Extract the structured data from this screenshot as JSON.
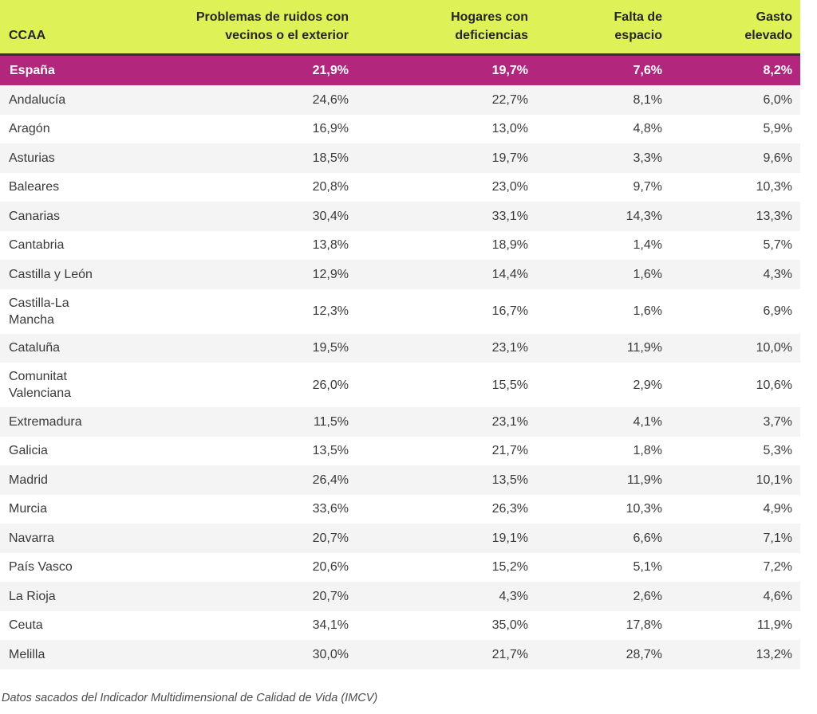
{
  "chart_data": {
    "type": "table",
    "title": "",
    "unit": "%",
    "columns": [
      "CCAA",
      "Problemas de ruidos con vecinos o el exterior",
      "Hogares con deficiencias",
      "Falta de espacio",
      "Gasto elevado"
    ],
    "rows": [
      {
        "ccaa": "España",
        "highlight": true,
        "values": [
          21.9,
          19.7,
          7.6,
          8.2
        ]
      },
      {
        "ccaa": "Andalucía",
        "values": [
          24.6,
          22.7,
          8.1,
          6.0
        ]
      },
      {
        "ccaa": "Aragón",
        "values": [
          16.9,
          13.0,
          4.8,
          5.9
        ]
      },
      {
        "ccaa": "Asturias",
        "values": [
          18.5,
          19.7,
          3.3,
          9.6
        ]
      },
      {
        "ccaa": "Baleares",
        "values": [
          20.8,
          23.0,
          9.7,
          10.3
        ]
      },
      {
        "ccaa": "Canarias",
        "values": [
          30.4,
          33.1,
          14.3,
          13.3
        ]
      },
      {
        "ccaa": "Cantabria",
        "values": [
          13.8,
          18.9,
          1.4,
          5.7
        ]
      },
      {
        "ccaa": "Castilla y León",
        "values": [
          12.9,
          14.4,
          1.6,
          4.3
        ]
      },
      {
        "ccaa": "Castilla-La Mancha",
        "values": [
          12.3,
          16.7,
          1.6,
          6.9
        ]
      },
      {
        "ccaa": "Cataluña",
        "values": [
          19.5,
          23.1,
          11.9,
          10.0
        ]
      },
      {
        "ccaa": "Comunitat Valenciana",
        "values": [
          26.0,
          15.5,
          2.9,
          10.6
        ]
      },
      {
        "ccaa": "Extremadura",
        "values": [
          11.5,
          23.1,
          4.1,
          3.7
        ]
      },
      {
        "ccaa": "Galicia",
        "values": [
          13.5,
          21.7,
          1.8,
          5.3
        ]
      },
      {
        "ccaa": "Madrid",
        "values": [
          26.4,
          13.5,
          11.9,
          10.1
        ]
      },
      {
        "ccaa": "Murcia",
        "values": [
          33.6,
          26.3,
          10.3,
          4.9
        ]
      },
      {
        "ccaa": "Navarra",
        "values": [
          20.7,
          19.1,
          6.6,
          7.1
        ]
      },
      {
        "ccaa": "País Vasco",
        "values": [
          20.6,
          15.2,
          5.1,
          7.2
        ]
      },
      {
        "ccaa": "La Rioja",
        "values": [
          20.7,
          4.3,
          2.6,
          4.6
        ]
      },
      {
        "ccaa": "Ceuta",
        "values": [
          34.1,
          35.0,
          17.8,
          11.9
        ]
      },
      {
        "ccaa": "Melilla",
        "values": [
          30.0,
          21.7,
          28.7,
          13.2
        ]
      }
    ],
    "note": "Datos sacados del Indicador Multidimensional de Calidad de Vida (IMCV)",
    "number_format": "decimal-comma-percent",
    "layout": {
      "grid": "striped-rows",
      "legend": "none"
    }
  },
  "colors": {
    "header_bg": "#def257",
    "header_text": "#26262a",
    "header_divider": "#333333",
    "highlight_bg": "#b3267e",
    "highlight_text": "#ffffff",
    "row_text": "#3a3a3a",
    "stripe_bg": "#f4f4f5",
    "row_bg": "#ffffff",
    "note_text": "#4d4d4d"
  }
}
